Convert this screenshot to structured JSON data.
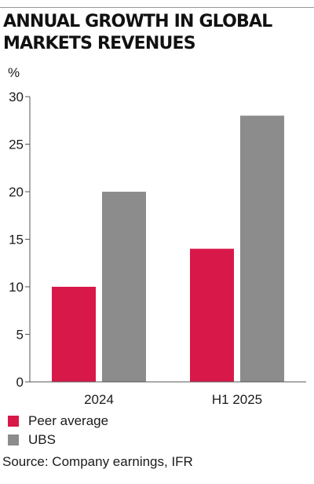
{
  "header": {
    "title_line1": "ANNUAL GROWTH IN GLOBAL",
    "title_line2": "MARKETS REVENUES"
  },
  "chart_data": {
    "type": "bar",
    "title": "ANNUAL GROWTH IN GLOBAL MARKETS REVENUES",
    "unit": "%",
    "categories": [
      "2024",
      "H1 2025"
    ],
    "series": [
      {
        "name": "Peer average",
        "values": [
          10,
          14
        ],
        "color": "#d9184a"
      },
      {
        "name": "UBS",
        "values": [
          20,
          28
        ],
        "color": "#8c8c8c"
      }
    ],
    "ylim": [
      0,
      30
    ],
    "yticks": [
      "0",
      "5",
      "10",
      "15",
      "20",
      "25",
      "30"
    ],
    "grid": false,
    "legend_position": "bottom-left"
  },
  "source": "Source: Company earnings, IFR"
}
